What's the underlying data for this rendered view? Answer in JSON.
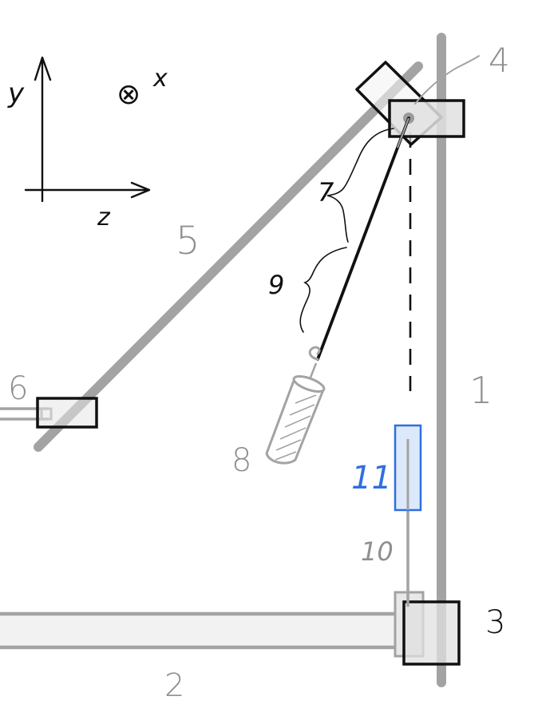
{
  "axes": {
    "y_label": "y",
    "z_label": "z",
    "x_label": "x",
    "x_symbol": "⊗"
  },
  "labels": {
    "part_1": "1",
    "part_2": "2",
    "part_3": "3",
    "part_4": "4",
    "part_5": "5",
    "part_6": "6",
    "part_7": "7",
    "part_8": "8",
    "part_9": "9",
    "part_10": "10",
    "part_11": "11"
  },
  "colors": {
    "gray_bar": "#a3a3a3",
    "light_fill": "#e5e5e5",
    "black": "#111111",
    "accent_blue": "#2f6fe0",
    "blue_fill": "#dce9fb"
  }
}
